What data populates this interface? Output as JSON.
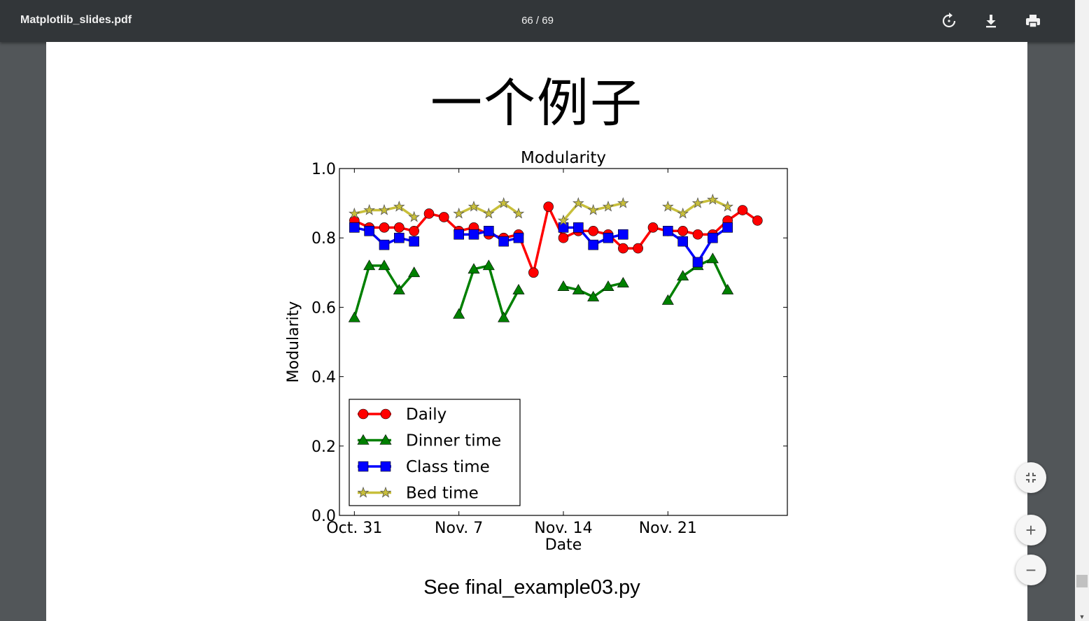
{
  "viewer": {
    "filename": "Matplotlib_slides.pdf",
    "page_counter": "66 / 69",
    "icons": {
      "rotate": "rotate-icon",
      "download": "download-icon",
      "print": "print-icon",
      "fit": "fit-page-icon",
      "zoom_in": "zoom-in-icon",
      "zoom_out": "zoom-out-icon"
    },
    "zoom_in_label": "+",
    "zoom_out_label": "−"
  },
  "slide": {
    "title": "一个例子",
    "caption": "See final_example03.py"
  },
  "chart_data": {
    "type": "line",
    "title": "Modularity",
    "xlabel": "Date",
    "ylabel": "Modularity",
    "ylim": [
      0.0,
      1.0
    ],
    "yticks": [
      "0.0",
      "0.2",
      "0.4",
      "0.6",
      "0.8",
      "1.0"
    ],
    "xlim": [
      -1,
      29
    ],
    "xticks": [
      {
        "x": 0,
        "label": "Oct. 31"
      },
      {
        "x": 7,
        "label": "Nov. 7"
      },
      {
        "x": 14,
        "label": "Nov. 14"
      },
      {
        "x": 21,
        "label": "Nov. 21"
      }
    ],
    "legend_position": "lower-left",
    "series": [
      {
        "name": "Daily",
        "color": "#ff0000",
        "marker": "circle",
        "points": [
          [
            0,
            0.85
          ],
          [
            1,
            0.83
          ],
          [
            2,
            0.83
          ],
          [
            3,
            0.83
          ],
          [
            4,
            0.82
          ],
          [
            5,
            0.87
          ],
          [
            6,
            0.86
          ],
          [
            7,
            0.82
          ],
          [
            8,
            0.83
          ],
          [
            9,
            0.81
          ],
          [
            10,
            0.8
          ],
          [
            11,
            0.81
          ],
          [
            12,
            0.7
          ],
          [
            13,
            0.89
          ],
          [
            14,
            0.8
          ],
          [
            15,
            0.82
          ],
          [
            16,
            0.82
          ],
          [
            17,
            0.81
          ],
          [
            18,
            0.77
          ],
          [
            19,
            0.77
          ],
          [
            20,
            0.83
          ],
          [
            21,
            0.82
          ],
          [
            22,
            0.82
          ],
          [
            23,
            0.81
          ],
          [
            24,
            0.81
          ],
          [
            25,
            0.85
          ],
          [
            26,
            0.88
          ],
          [
            27,
            0.85
          ]
        ]
      },
      {
        "name": "Dinner time",
        "color": "#008000",
        "marker": "triangle",
        "points": [
          [
            0,
            0.57
          ],
          [
            1,
            0.72
          ],
          [
            2,
            0.72
          ],
          [
            3,
            0.65
          ],
          [
            4,
            0.7
          ],
          [
            null,
            null
          ],
          [
            7,
            0.58
          ],
          [
            8,
            0.71
          ],
          [
            9,
            0.72
          ],
          [
            10,
            0.57
          ],
          [
            11,
            0.65
          ],
          [
            null,
            null
          ],
          [
            14,
            0.66
          ],
          [
            15,
            0.65
          ],
          [
            16,
            0.63
          ],
          [
            17,
            0.66
          ],
          [
            18,
            0.67
          ],
          [
            null,
            null
          ],
          [
            21,
            0.62
          ],
          [
            22,
            0.69
          ],
          [
            23,
            0.72
          ],
          [
            24,
            0.74
          ],
          [
            25,
            0.65
          ]
        ]
      },
      {
        "name": "Class time",
        "color": "#0000ff",
        "marker": "square",
        "points": [
          [
            0,
            0.83
          ],
          [
            1,
            0.82
          ],
          [
            2,
            0.78
          ],
          [
            3,
            0.8
          ],
          [
            4,
            0.79
          ],
          [
            null,
            null
          ],
          [
            7,
            0.81
          ],
          [
            8,
            0.81
          ],
          [
            9,
            0.82
          ],
          [
            10,
            0.79
          ],
          [
            11,
            0.8
          ],
          [
            null,
            null
          ],
          [
            14,
            0.83
          ],
          [
            15,
            0.83
          ],
          [
            16,
            0.78
          ],
          [
            17,
            0.8
          ],
          [
            18,
            0.81
          ],
          [
            null,
            null
          ],
          [
            21,
            0.82
          ],
          [
            22,
            0.79
          ],
          [
            23,
            0.73
          ],
          [
            24,
            0.8
          ],
          [
            25,
            0.83
          ]
        ]
      },
      {
        "name": "Bed time",
        "color": "#c8bf3a",
        "marker": "star",
        "points": [
          [
            0,
            0.87
          ],
          [
            1,
            0.88
          ],
          [
            2,
            0.88
          ],
          [
            3,
            0.89
          ],
          [
            4,
            0.86
          ],
          [
            null,
            null
          ],
          [
            7,
            0.87
          ],
          [
            8,
            0.89
          ],
          [
            9,
            0.87
          ],
          [
            10,
            0.9
          ],
          [
            11,
            0.87
          ],
          [
            null,
            null
          ],
          [
            14,
            0.85
          ],
          [
            15,
            0.9
          ],
          [
            16,
            0.88
          ],
          [
            17,
            0.89
          ],
          [
            18,
            0.9
          ],
          [
            null,
            null
          ],
          [
            21,
            0.89
          ],
          [
            22,
            0.87
          ],
          [
            23,
            0.9
          ],
          [
            24,
            0.91
          ],
          [
            25,
            0.89
          ]
        ]
      }
    ]
  }
}
